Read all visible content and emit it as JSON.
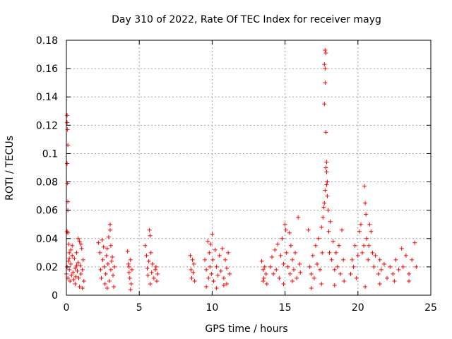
{
  "chart_data": {
    "type": "scatter",
    "title": "Day 310 of 2022, Rate Of TEC Index for receiver mayg",
    "xlabel": "GPS time / hours",
    "ylabel": "ROTI / TECUs",
    "xlim": [
      0,
      25
    ],
    "ylim": [
      0,
      0.18
    ],
    "xticks": [
      0,
      5,
      10,
      15,
      20,
      25
    ],
    "xtick_labels": [
      "0",
      "5",
      "10",
      "15",
      "20",
      "25"
    ],
    "yticks": [
      0,
      0.02,
      0.04,
      0.06,
      0.08,
      0.1,
      0.12,
      0.14,
      0.16,
      0.18
    ],
    "ytick_labels": [
      "0",
      "0.02",
      "0.04",
      "0.06",
      "0.08",
      "0.1",
      "0.12",
      "0.14",
      "0.16",
      "0.18"
    ],
    "grid": true,
    "marker": "+",
    "color": "#ff0000",
    "series": [
      {
        "name": "ROTI",
        "points": [
          [
            0.05,
            0.127
          ],
          [
            0.05,
            0.122
          ],
          [
            0.08,
            0.117
          ],
          [
            0.1,
            0.106
          ],
          [
            0.05,
            0.093
          ],
          [
            0.08,
            0.079
          ],
          [
            0.1,
            0.066
          ],
          [
            0.1,
            0.06
          ],
          [
            0.05,
            0.045
          ],
          [
            0.1,
            0.044
          ],
          [
            0.15,
            0.036
          ],
          [
            0.2,
            0.03
          ],
          [
            0.0,
            0.015
          ],
          [
            0.05,
            0.02
          ],
          [
            0.1,
            0.012
          ],
          [
            0.15,
            0.024
          ],
          [
            0.2,
            0.018
          ],
          [
            0.25,
            0.01
          ],
          [
            0.3,
            0.022
          ],
          [
            0.35,
            0.014
          ],
          [
            0.4,
            0.028
          ],
          [
            0.45,
            0.016
          ],
          [
            0.5,
            0.011
          ],
          [
            0.55,
            0.026
          ],
          [
            0.6,
            0.019
          ],
          [
            0.65,
            0.013
          ],
          [
            0.7,
            0.03
          ],
          [
            0.75,
            0.017
          ],
          [
            0.8,
            0.023
          ],
          [
            0.85,
            0.012
          ],
          [
            0.9,
            0.038
          ],
          [
            0.95,
            0.021
          ],
          [
            1.0,
            0.015
          ],
          [
            1.05,
            0.033
          ],
          [
            1.1,
            0.018
          ],
          [
            1.15,
            0.025
          ],
          [
            1.2,
            0.01
          ],
          [
            0.3,
            0.032
          ],
          [
            0.6,
            0.008
          ],
          [
            0.9,
            0.006
          ],
          [
            1.1,
            0.005
          ],
          [
            0.4,
            0.035
          ],
          [
            0.8,
            0.04
          ],
          [
            1.0,
            0.036
          ],
          [
            0.2,
            0.026
          ],
          [
            0.7,
            0.021
          ],
          [
            2.2,
            0.037
          ],
          [
            2.3,
            0.03
          ],
          [
            2.35,
            0.018
          ],
          [
            2.4,
            0.012
          ],
          [
            2.5,
            0.025
          ],
          [
            2.55,
            0.034
          ],
          [
            2.6,
            0.02
          ],
          [
            2.7,
            0.015
          ],
          [
            2.75,
            0.028
          ],
          [
            2.8,
            0.033
          ],
          [
            2.85,
            0.022
          ],
          [
            2.9,
            0.041
          ],
          [
            2.95,
            0.01
          ],
          [
            3.0,
            0.05
          ],
          [
            3.0,
            0.046
          ],
          [
            3.05,
            0.018
          ],
          [
            3.1,
            0.024
          ],
          [
            3.15,
            0.027
          ],
          [
            3.2,
            0.014
          ],
          [
            3.25,
            0.006
          ],
          [
            3.3,
            0.02
          ],
          [
            2.45,
            0.039
          ],
          [
            2.65,
            0.008
          ],
          [
            3.05,
            0.035
          ],
          [
            2.8,
            0.005
          ],
          [
            4.2,
            0.031
          ],
          [
            4.25,
            0.022
          ],
          [
            4.3,
            0.016
          ],
          [
            4.35,
            0.012
          ],
          [
            4.4,
            0.025
          ],
          [
            4.45,
            0.008
          ],
          [
            4.5,
            0.018
          ],
          [
            4.4,
            0.004
          ],
          [
            4.3,
            0.02
          ],
          [
            5.4,
            0.035
          ],
          [
            5.5,
            0.028
          ],
          [
            5.55,
            0.019
          ],
          [
            5.6,
            0.014
          ],
          [
            5.65,
            0.024
          ],
          [
            5.7,
            0.046
          ],
          [
            5.75,
            0.042
          ],
          [
            5.8,
            0.03
          ],
          [
            5.85,
            0.016
          ],
          [
            5.9,
            0.022
          ],
          [
            6.0,
            0.012
          ],
          [
            6.1,
            0.018
          ],
          [
            6.2,
            0.01
          ],
          [
            6.25,
            0.015
          ],
          [
            5.75,
            0.008
          ],
          [
            6.15,
            0.02
          ],
          [
            8.5,
            0.028
          ],
          [
            8.55,
            0.018
          ],
          [
            8.6,
            0.012
          ],
          [
            8.65,
            0.025
          ],
          [
            8.7,
            0.016
          ],
          [
            8.75,
            0.022
          ],
          [
            8.8,
            0.01
          ],
          [
            9.5,
            0.025
          ],
          [
            9.6,
            0.018
          ],
          [
            9.7,
            0.038
          ],
          [
            9.75,
            0.012
          ],
          [
            9.8,
            0.03
          ],
          [
            9.85,
            0.02
          ],
          [
            9.9,
            0.036
          ],
          [
            9.95,
            0.015
          ],
          [
            10.0,
            0.043
          ],
          [
            10.05,
            0.025
          ],
          [
            10.1,
            0.01
          ],
          [
            10.2,
            0.032
          ],
          [
            10.3,
            0.02
          ],
          [
            10.4,
            0.014
          ],
          [
            10.5,
            0.028
          ],
          [
            10.6,
            0.017
          ],
          [
            10.7,
            0.033
          ],
          [
            10.8,
            0.012
          ],
          [
            10.9,
            0.025
          ],
          [
            11.0,
            0.019
          ],
          [
            11.1,
            0.03
          ],
          [
            11.2,
            0.015
          ],
          [
            9.6,
            0.006
          ],
          [
            10.3,
            0.005
          ],
          [
            10.8,
            0.007
          ],
          [
            11.0,
            0.008
          ],
          [
            13.4,
            0.024
          ],
          [
            13.5,
            0.018
          ],
          [
            13.55,
            0.012
          ],
          [
            13.6,
            0.02
          ],
          [
            13.7,
            0.015
          ],
          [
            13.75,
            0.008
          ],
          [
            13.5,
            0.01
          ],
          [
            14.0,
            0.02
          ],
          [
            14.1,
            0.027
          ],
          [
            14.2,
            0.015
          ],
          [
            14.3,
            0.032
          ],
          [
            14.4,
            0.018
          ],
          [
            14.5,
            0.036
          ],
          [
            14.6,
            0.012
          ],
          [
            14.7,
            0.028
          ],
          [
            14.8,
            0.04
          ],
          [
            14.9,
            0.022
          ],
          [
            15.0,
            0.05
          ],
          [
            15.05,
            0.046
          ],
          [
            15.1,
            0.03
          ],
          [
            15.2,
            0.02
          ],
          [
            15.3,
            0.044
          ],
          [
            15.35,
            0.015
          ],
          [
            15.4,
            0.035
          ],
          [
            15.5,
            0.025
          ],
          [
            15.6,
            0.018
          ],
          [
            15.7,
            0.03
          ],
          [
            15.8,
            0.012
          ],
          [
            15.9,
            0.055
          ],
          [
            16.0,
            0.022
          ],
          [
            16.05,
            0.016
          ],
          [
            14.9,
            0.008
          ],
          [
            15.5,
            0.01
          ],
          [
            16.6,
            0.046
          ],
          [
            16.7,
            0.02
          ],
          [
            16.8,
            0.015
          ],
          [
            16.9,
            0.028
          ],
          [
            17.0,
            0.012
          ],
          [
            17.1,
            0.035
          ],
          [
            17.2,
            0.022
          ],
          [
            17.3,
            0.04
          ],
          [
            17.4,
            0.018
          ],
          [
            17.5,
            0.048
          ],
          [
            17.55,
            0.03
          ],
          [
            17.6,
            0.055
          ],
          [
            17.65,
            0.062
          ],
          [
            17.7,
            0.065
          ],
          [
            17.75,
            0.074
          ],
          [
            17.75,
            0.173
          ],
          [
            17.8,
            0.171
          ],
          [
            17.7,
            0.163
          ],
          [
            17.75,
            0.16
          ],
          [
            17.75,
            0.15
          ],
          [
            17.7,
            0.135
          ],
          [
            17.8,
            0.115
          ],
          [
            17.85,
            0.094
          ],
          [
            17.8,
            0.09
          ],
          [
            17.85,
            0.087
          ],
          [
            17.9,
            0.08
          ],
          [
            17.85,
            0.078
          ],
          [
            17.9,
            0.07
          ],
          [
            17.95,
            0.06
          ],
          [
            18.0,
            0.045
          ],
          [
            18.05,
            0.03
          ],
          [
            18.1,
            0.052
          ],
          [
            18.2,
            0.025
          ],
          [
            18.3,
            0.038
          ],
          [
            18.4,
            0.018
          ],
          [
            18.5,
            0.03
          ],
          [
            18.6,
            0.02
          ],
          [
            18.7,
            0.035
          ],
          [
            18.8,
            0.015
          ],
          [
            18.9,
            0.046
          ],
          [
            19.0,
            0.025
          ],
          [
            19.05,
            0.01
          ],
          [
            16.8,
            0.005
          ],
          [
            17.5,
            0.008
          ],
          [
            18.4,
            0.007
          ],
          [
            19.5,
            0.015
          ],
          [
            19.6,
            0.025
          ],
          [
            19.7,
            0.02
          ],
          [
            19.8,
            0.035
          ],
          [
            19.9,
            0.012
          ],
          [
            20.0,
            0.028
          ],
          [
            20.1,
            0.045
          ],
          [
            20.2,
            0.05
          ],
          [
            20.3,
            0.03
          ],
          [
            20.4,
            0.035
          ],
          [
            20.45,
            0.077
          ],
          [
            20.5,
            0.065
          ],
          [
            20.55,
            0.057
          ],
          [
            20.6,
            0.04
          ],
          [
            20.7,
            0.025
          ],
          [
            20.75,
            0.035
          ],
          [
            20.8,
            0.05
          ],
          [
            20.9,
            0.045
          ],
          [
            21.0,
            0.03
          ],
          [
            21.1,
            0.02
          ],
          [
            21.2,
            0.028
          ],
          [
            21.4,
            0.015
          ],
          [
            21.5,
            0.025
          ],
          [
            21.6,
            0.018
          ],
          [
            21.8,
            0.022
          ],
          [
            22.0,
            0.012
          ],
          [
            22.2,
            0.02
          ],
          [
            22.4,
            0.015
          ],
          [
            22.6,
            0.025
          ],
          [
            22.8,
            0.018
          ],
          [
            23.0,
            0.033
          ],
          [
            23.1,
            0.02
          ],
          [
            23.3,
            0.028
          ],
          [
            23.5,
            0.015
          ],
          [
            23.7,
            0.025
          ],
          [
            23.9,
            0.037
          ],
          [
            24.0,
            0.02
          ],
          [
            22.5,
            0.01
          ],
          [
            20.5,
            0.006
          ],
          [
            21.5,
            0.008
          ],
          [
            23.5,
            0.01
          ]
        ]
      }
    ]
  }
}
